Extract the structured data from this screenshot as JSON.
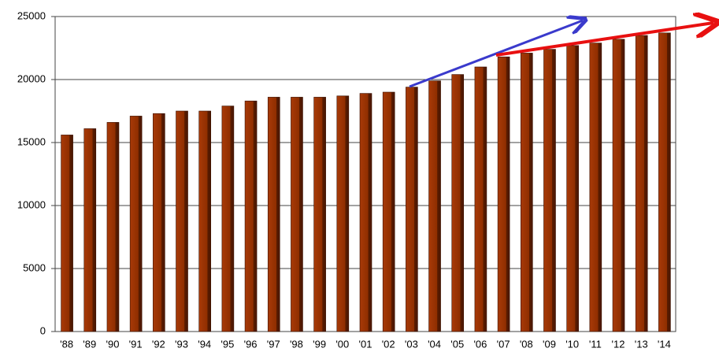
{
  "chart_data": {
    "type": "bar",
    "categories": [
      "'88",
      "'89",
      "'90",
      "'91",
      "'92",
      "'93",
      "'94",
      "'95",
      "'96",
      "'97",
      "'98",
      "'99",
      "'00",
      "'01",
      "'02",
      "'03",
      "'04",
      "'05",
      "'06",
      "'07",
      "'08",
      "'09",
      "'10",
      "'11",
      "'12",
      "'13",
      "'14"
    ],
    "values": [
      15600,
      16100,
      16600,
      17100,
      17300,
      17500,
      17500,
      17900,
      18300,
      18600,
      18600,
      18600,
      18700,
      18900,
      19000,
      19400,
      19900,
      20400,
      21000,
      21800,
      22100,
      22400,
      22700,
      22900,
      23200,
      23500,
      23700
    ],
    "color": "#9a3200",
    "ylim": [
      0,
      25000
    ],
    "yticks": [
      0,
      5000,
      10000,
      15000,
      20000,
      25000
    ],
    "grid": true
  }
}
